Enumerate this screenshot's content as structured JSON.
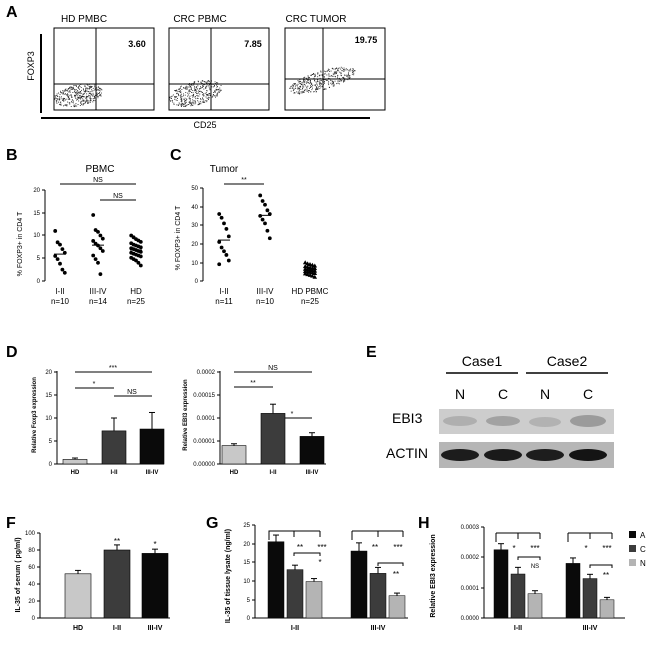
{
  "panels": {
    "A": {
      "letter": "A",
      "plots": [
        {
          "title": "HD PMBC",
          "value": "3.60"
        },
        {
          "title": "CRC PBMC",
          "value": "7.85"
        },
        {
          "title": "CRC TUMOR",
          "value": "19.75"
        }
      ],
      "ylabel": "FOXP3",
      "xlabel": "CD25"
    },
    "B": {
      "letter": "B",
      "title": "PBMC",
      "ylabel": "% FOXP3+ in CD4 T",
      "ticks": [
        "0",
        "5",
        "10",
        "15",
        "20"
      ],
      "groups": [
        {
          "label": "I-II",
          "n": "n=10"
        },
        {
          "label": "III-IV",
          "n": "n=14"
        },
        {
          "label": "HD",
          "n": "n=25"
        }
      ],
      "sig": [
        "NS",
        "NS"
      ]
    },
    "C": {
      "letter": "C",
      "title": "Tumor",
      "ylabel": "% FOXP3+ in CD4 T",
      "ticks": [
        "0",
        "10",
        "20",
        "30",
        "40",
        "50"
      ],
      "groups": [
        {
          "label": "I-II",
          "n": "n=11"
        },
        {
          "label": "III-IV",
          "n": "n=10"
        },
        {
          "label": "HD PBMC",
          "n": "n=25"
        }
      ],
      "sig": [
        "**"
      ]
    },
    "D": {
      "letter": "D",
      "left": {
        "ylabel": "Relative Foxp3 expression",
        "ticks": [
          "0",
          "5",
          "10",
          "15",
          "20"
        ],
        "categories": [
          "HD",
          "I-II",
          "III-IV"
        ],
        "sig": [
          "***",
          "*",
          "NS"
        ]
      },
      "right": {
        "ylabel": "Relative EBI3 expression",
        "ticks": [
          "0.00000",
          "0.00001",
          "0.0001",
          "0.00015",
          "0.0002"
        ],
        "categories": [
          "HD",
          "I-II",
          "III-IV"
        ],
        "sig": [
          "NS",
          "**",
          "*"
        ]
      }
    },
    "E": {
      "letter": "E",
      "cases": [
        "Case1",
        "Case2"
      ],
      "lanes": [
        "N",
        "C",
        "N",
        "C"
      ],
      "rows": [
        "EBI3",
        "ACTIN"
      ]
    },
    "F": {
      "letter": "F",
      "ylabel": "IL-35  of serum  ( pg/ml)",
      "ticks": [
        "0",
        "20",
        "40",
        "60",
        "80",
        "100"
      ],
      "categories": [
        "HD",
        "I-II",
        "III-IV"
      ],
      "sig": [
        "**",
        "*"
      ]
    },
    "G": {
      "letter": "G",
      "ylabel": "IL-35 of tissue lysate (ng/ml)",
      "ticks": [
        "0",
        "5",
        "10",
        "15",
        "20",
        "25"
      ],
      "groups": [
        "I-II",
        "III-IV"
      ],
      "sig": [
        "**",
        "***",
        "*",
        "**",
        "***",
        "**"
      ]
    },
    "H": {
      "letter": "H",
      "ylabel": "Relative EBI3 expression",
      "ticks": [
        "0.0000",
        "0.0001",
        "0.0002",
        "0.0003"
      ],
      "groups": [
        "I-II",
        "III-IV"
      ],
      "sig": [
        "*",
        "***",
        "NS",
        "*",
        "***",
        "**"
      ],
      "legend": [
        "A",
        "C",
        "N"
      ]
    }
  },
  "chart_data": [
    {
      "panel": "B",
      "type": "scatter",
      "title": "PBMC",
      "ylabel": "% FOXP3+ in CD4 T",
      "ylim": [
        0,
        20
      ],
      "categories": [
        "I-II",
        "III-IV",
        "HD"
      ],
      "series": [
        {
          "values": [
            11,
            8.5,
            8,
            7,
            6.2,
            5.5,
            4.8,
            3.8,
            2.5,
            1.8
          ]
        },
        {
          "values": [
            14.5,
            11.2,
            10.8,
            10,
            9.3,
            8.8,
            8.2,
            7.8,
            7.2,
            6.6,
            5.6,
            4.8,
            4,
            1.5
          ]
        },
        {
          "values": [
            10,
            9.6,
            9.2,
            8.9,
            8.6,
            8.3,
            8,
            7.8,
            7.6,
            7.4,
            7.2,
            7,
            6.8,
            6.6,
            6.4,
            6.2,
            6,
            5.8,
            5.6,
            5.4,
            5.1,
            4.8,
            4.5,
            4,
            3.4
          ]
        }
      ]
    },
    {
      "panel": "C",
      "type": "scatter",
      "title": "Tumor",
      "ylabel": "% FOXP3+ in CD4 T",
      "ylim": [
        0,
        50
      ],
      "categories": [
        "I-II",
        "III-IV",
        "HD PBMC"
      ],
      "series": [
        {
          "values": [
            36,
            34,
            31,
            28,
            24,
            21,
            18,
            16,
            14,
            11,
            9
          ]
        },
        {
          "values": [
            46,
            43,
            41,
            38,
            36,
            35,
            33,
            31,
            27,
            23
          ]
        },
        {
          "values": [
            10,
            9.4,
            9,
            8.6,
            8.2,
            7.9,
            7.6,
            7.3,
            7,
            6.8,
            6.5,
            6.2,
            6,
            5.8,
            5.5,
            5.2,
            5,
            4.8,
            4.5,
            4.2,
            4,
            3.6,
            3.2,
            2.8,
            2.2
          ]
        }
      ]
    },
    {
      "panel": "D-left",
      "type": "bar",
      "ylabel": "Relative Foxp3 expression",
      "ylim": [
        0,
        20
      ],
      "categories": [
        "HD",
        "I-II",
        "III-IV"
      ],
      "values": [
        1,
        7.2,
        7.6
      ],
      "errors": [
        0.3,
        2.8,
        3.6
      ]
    },
    {
      "panel": "D-right",
      "type": "bar",
      "ylabel": "Relative EBI3 expression",
      "ylim": [
        0,
        0.0002
      ],
      "categories": [
        "HD",
        "I-II",
        "III-IV"
      ],
      "values": [
        4e-05,
        0.00011,
        6e-05
      ],
      "errors": [
        4e-06,
        2e-05,
        8e-06
      ]
    },
    {
      "panel": "F",
      "type": "bar",
      "ylabel": "IL-35  of serum  ( pg/ml)",
      "ylim": [
        0,
        100
      ],
      "categories": [
        "HD",
        "I-II",
        "III-IV"
      ],
      "values": [
        52,
        80,
        76
      ],
      "errors": [
        4,
        6,
        5
      ]
    },
    {
      "panel": "G",
      "type": "bar",
      "ylabel": "IL-35 of tissue lysate (ng/ml)",
      "ylim": [
        0,
        25
      ],
      "categories": [
        "I-II",
        "III-IV"
      ],
      "series": [
        {
          "name": "A",
          "values": [
            20.5,
            18
          ],
          "errors": [
            1.8,
            2.2
          ]
        },
        {
          "name": "C",
          "values": [
            13,
            12
          ],
          "errors": [
            1.2,
            1.6
          ]
        },
        {
          "name": "N",
          "values": [
            9.8,
            6
          ],
          "errors": [
            0.8,
            0.7
          ]
        }
      ]
    },
    {
      "panel": "H",
      "type": "bar",
      "ylabel": "Relative EBI3 expression",
      "ylim": [
        0,
        0.0003
      ],
      "categories": [
        "I-II",
        "III-IV"
      ],
      "series": [
        {
          "name": "A",
          "values": [
            0.000225,
            0.00018
          ],
          "errors": [
            2e-05,
            1.8e-05
          ]
        },
        {
          "name": "C",
          "values": [
            0.000145,
            0.00013
          ],
          "errors": [
            2.2e-05,
            1.4e-05
          ]
        },
        {
          "name": "N",
          "values": [
            8e-05,
            6e-05
          ],
          "errors": [
            1e-05,
            8e-06
          ]
        }
      ]
    }
  ],
  "colors": {
    "bar_light": "#c8c8c8",
    "bar_mid": "#3c3c3c",
    "bar_dark": "#0a0a0a",
    "legend_light": "#b4b4b4",
    "blot_bg": "#bdbdbd"
  }
}
